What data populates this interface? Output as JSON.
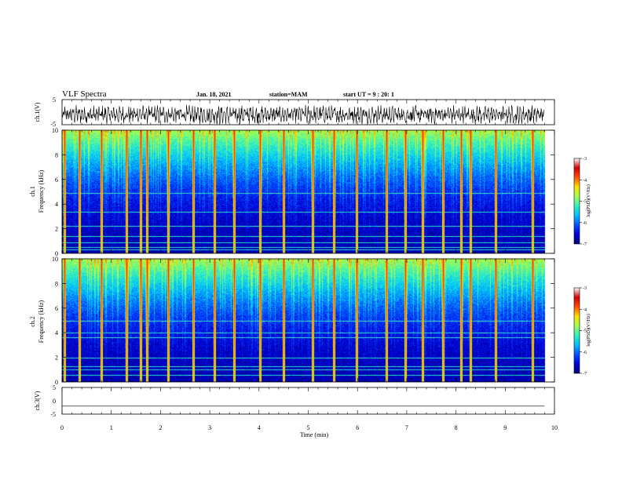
{
  "header": {
    "title": "VLF Spectra",
    "date": "Jan. 18, 2021",
    "station": "station=MAM",
    "start_ut": "start UT =  9 : 20: 1"
  },
  "colors": {
    "colormap": [
      "#00007a",
      "#0000d8",
      "#0050ff",
      "#00c0ff",
      "#30f0c0",
      "#a0ff50",
      "#ffe000",
      "#ff5000",
      "#d00000",
      "#ffffff"
    ],
    "waveform": "#000000"
  },
  "chart_data": [
    {
      "type": "line",
      "name": "ch1-waveform",
      "ylabel": "ch.1(V)",
      "ylim": [
        -5,
        5
      ],
      "yticks": [
        "5",
        "-5"
      ],
      "description_of_signal": "dense oscillating waveform roughly between -5 and +3 V"
    },
    {
      "type": "heatmap",
      "name": "ch1-spectrogram",
      "ylabel_line1": "ch.1",
      "ylabel_line2": "Frequency (kHz)",
      "ylim": [
        0,
        10
      ],
      "yticks": [
        "0",
        "2",
        "4",
        "6",
        "8",
        "10"
      ],
      "colorbar": {
        "label": "log(PSD)(V²/Hz)",
        "ticks": [
          "-3",
          "-4",
          "-5",
          "-6",
          "-7"
        ],
        "range": [
          -7,
          -3
        ]
      },
      "bright_vertical_lines_min": [
        0.04,
        0.35,
        0.8,
        1.3,
        1.6,
        1.72,
        2.15,
        2.66,
        3.1,
        3.5,
        4.02,
        4.5,
        5.08,
        5.52,
        5.98,
        6.58,
        6.97,
        7.32,
        7.73,
        8.1,
        8.3,
        8.8,
        9.55
      ],
      "horizontal_lines_khz": [
        0.3,
        0.5,
        0.9,
        1.4,
        2.2,
        3.4,
        4.9
      ]
    },
    {
      "type": "heatmap",
      "name": "ch2-spectrogram",
      "ylabel_line1": "ch.2",
      "ylabel_line2": "Frequency (kHz)",
      "ylim": [
        0,
        10
      ],
      "yticks": [
        "0",
        "2",
        "4",
        "6",
        "8",
        "10"
      ],
      "colorbar": {
        "label": "log(PSD)(V²/Hz)",
        "ticks": [
          "-3",
          "-4",
          "-5",
          "-6",
          "-7"
        ],
        "range": [
          -7,
          -3
        ]
      },
      "bright_vertical_lines_min": [
        0.04,
        0.35,
        0.8,
        1.3,
        1.6,
        1.72,
        2.15,
        2.66,
        3.1,
        3.5,
        4.02,
        4.5,
        5.08,
        5.52,
        5.98,
        6.58,
        6.97,
        7.32,
        7.73,
        8.1,
        8.3,
        8.8,
        9.55
      ],
      "horizontal_lines_khz": [
        0.6,
        1.0,
        1.3,
        2.0,
        3.6,
        4.0,
        5.0
      ]
    },
    {
      "type": "line",
      "name": "ch3-waveform",
      "ylabel": "ch.3(V)",
      "ylim": [
        -5,
        5
      ],
      "yticks": [
        "5",
        "0",
        "-5"
      ],
      "constant_value": -2
    }
  ],
  "xaxis": {
    "label": "Time (min)",
    "xlim": [
      0,
      10
    ],
    "ticks": [
      "0",
      "1",
      "2",
      "3",
      "4",
      "5",
      "6",
      "7",
      "8",
      "9",
      "10"
    ],
    "data_end_min": 9.8
  }
}
